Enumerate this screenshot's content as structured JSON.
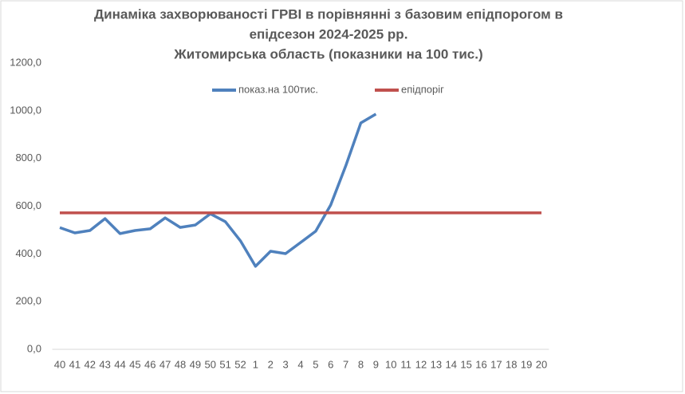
{
  "chart_data": {
    "type": "line",
    "title_lines": [
      "Динаміка захворюваності ГРВІ в порівнянні з базовим епідпорогом в",
      "епідсезон 2024-2025 рр.",
      "Житомирська область (показники на 100 тис.)"
    ],
    "categories": [
      "40",
      "41",
      "42",
      "43",
      "44",
      "45",
      "46",
      "47",
      "48",
      "49",
      "50",
      "51",
      "52",
      "1",
      "2",
      "3",
      "4",
      "5",
      "6",
      "7",
      "8",
      "9",
      "10",
      "11",
      "12",
      "13",
      "14",
      "15",
      "16",
      "17",
      "18",
      "19",
      "20"
    ],
    "series": [
      {
        "name": "показ.на 100тис.",
        "color": "#4f81bd",
        "values": [
          510,
          488,
          498,
          548,
          485,
          498,
          505,
          551,
          511,
          521,
          568,
          535,
          455,
          348,
          411,
          401,
          448,
          495,
          605,
          769,
          949,
          986,
          null,
          null,
          null,
          null,
          null,
          null,
          null,
          null,
          null,
          null,
          null
        ]
      },
      {
        "name": "епідпоріг",
        "color": "#c0504d",
        "values": [
          572,
          572,
          572,
          572,
          572,
          572,
          572,
          572,
          572,
          572,
          572,
          572,
          572,
          572,
          572,
          572,
          572,
          572,
          572,
          572,
          572,
          572,
          572,
          572,
          572,
          572,
          572,
          572,
          572,
          572,
          572,
          572,
          572
        ]
      }
    ],
    "ylim": [
      0,
      1200
    ],
    "yticks": [
      {
        "value": 0,
        "label": "0,0"
      },
      {
        "value": 200,
        "label": "200,0"
      },
      {
        "value": 400,
        "label": "400,0"
      },
      {
        "value": 600,
        "label": "600,0"
      },
      {
        "value": 800,
        "label": "800,0"
      },
      {
        "value": 1000,
        "label": "1000,0"
      },
      {
        "value": 1200,
        "label": "1200,0"
      }
    ],
    "legend": "top"
  }
}
